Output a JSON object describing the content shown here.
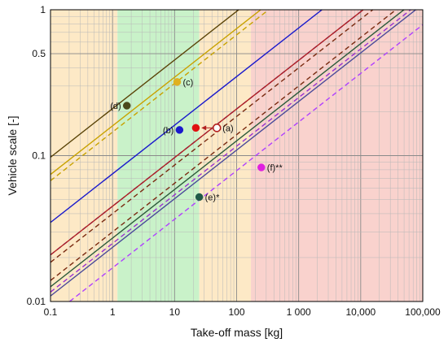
{
  "chart_data": {
    "type": "scatter",
    "title": "",
    "xlabel": "Take-off mass  [kg]",
    "ylabel": "Vehicle scale  [-]",
    "xscale": "log",
    "yscale": "log",
    "xlim": [
      0.1,
      100000
    ],
    "ylim": [
      0.01,
      1
    ],
    "grid": true,
    "x_ticks": [
      0.1,
      1,
      10,
      100,
      1000,
      10000,
      100000
    ],
    "x_tick_labels": [
      "0.1",
      "1",
      "10",
      "100",
      "1 000",
      "10,000",
      "100,000"
    ],
    "y_ticks": [
      0.01,
      0.1,
      0.5,
      1
    ],
    "y_tick_labels": [
      "0.01",
      "0.1",
      "0.5",
      "1"
    ],
    "bands": [
      {
        "x_from": 0.1,
        "x_to": 1.2,
        "color": "#fde9c6"
      },
      {
        "x_from": 1.2,
        "x_to": 25,
        "color": "#c9f2c9"
      },
      {
        "x_from": 25,
        "x_to": 170,
        "color": "#fde9c6"
      },
      {
        "x_from": 170,
        "x_to": 100000,
        "color": "#f9d2cd"
      }
    ],
    "lines": [
      {
        "at_x1": 0.21,
        "color": "#5a4408",
        "dash": false
      },
      {
        "at_x1": 0.16,
        "color": "#c8a200",
        "dash": false
      },
      {
        "at_x1": 0.145,
        "color": "#c8a200",
        "dash": true
      },
      {
        "at_x1": 0.075,
        "color": "#1a1acc",
        "dash": false
      },
      {
        "at_x1": 0.045,
        "color": "#1a1acc",
        "dash": true
      },
      {
        "at_x1": 0.045,
        "color": "#b32020",
        "dash": false
      },
      {
        "at_x1": 0.04,
        "color": "#7a2a10",
        "dash": true
      },
      {
        "at_x1": 0.03,
        "color": "#7a2a10",
        "dash": true
      },
      {
        "at_x1": 0.0272,
        "color": "#2a5a3a",
        "dash": false
      },
      {
        "at_x1": 0.025,
        "color": "#9a30d0",
        "dash": true
      },
      {
        "at_x1": 0.0235,
        "color": "#4a4a9a",
        "dash": false
      },
      {
        "at_x1": 0.017,
        "color": "#b040ff",
        "dash": true
      }
    ],
    "points": [
      {
        "label": "(a)",
        "x": 48,
        "y": 0.155,
        "color": "#b32020",
        "hollow": true,
        "label_side": "right"
      },
      {
        "label": "(b)",
        "x": 12,
        "y": 0.15,
        "color": "#1a1acc",
        "hollow": false,
        "label_side": "left"
      },
      {
        "label": "",
        "x": 22,
        "y": 0.155,
        "color": "#e01010",
        "hollow": false,
        "label_side": "none"
      },
      {
        "label": "(c)",
        "x": 11,
        "y": 0.32,
        "color": "#e0b020",
        "hollow": false,
        "label_side": "right"
      },
      {
        "label": "(d)",
        "x": 1.7,
        "y": 0.22,
        "color": "#4a4a1a",
        "hollow": false,
        "label_side": "left"
      },
      {
        "label": "(e)*",
        "x": 25,
        "y": 0.052,
        "color": "#1f5a48",
        "hollow": false,
        "label_side": "right"
      },
      {
        "label": "(f)**",
        "x": 250,
        "y": 0.083,
        "color": "#e020e0",
        "hollow": false,
        "label_side": "right"
      }
    ],
    "arrow": {
      "from": [
        43,
        0.155
      ],
      "to": [
        27,
        0.155
      ],
      "color": "#b32020"
    }
  }
}
